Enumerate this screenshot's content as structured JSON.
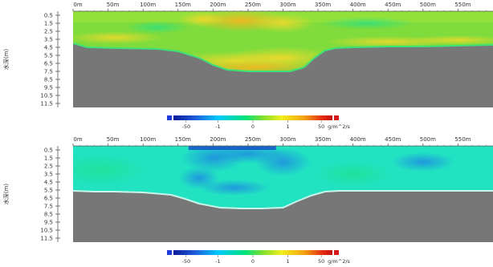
{
  "chart_data": [
    {
      "type": "heatmap",
      "panel": "upper",
      "x_tick_labels": [
        "0m",
        "50m",
        "100m",
        "150m",
        "200m",
        "250m",
        "300m",
        "350m",
        "400m",
        "450m",
        "500m",
        "550m"
      ],
      "x_ticks": [
        0,
        50,
        100,
        150,
        200,
        250,
        300,
        350,
        400,
        450,
        500,
        550
      ],
      "xlim": [
        0,
        600
      ],
      "y_axis_label": "水深(m)",
      "y_tick_labels": [
        "0.5",
        "1.5",
        "2.5",
        "3.5",
        "4.5",
        "5.5",
        "6.5",
        "7.5",
        "8.5",
        "9.5",
        "10.5",
        "11.5"
      ],
      "y_ticks": [
        0.5,
        1.5,
        2.5,
        3.5,
        4.5,
        5.5,
        6.5,
        7.5,
        8.5,
        9.5,
        10.5,
        11.5
      ],
      "ylim": [
        0,
        12
      ],
      "colorbar": {
        "tick_labels": [
          "-50",
          "-1",
          "0",
          "1",
          "50"
        ],
        "unit": "g/m^2/s",
        "ticks": [
          -50,
          -1,
          0,
          1,
          50
        ]
      },
      "bottom_profile": {
        "x": [
          0,
          20,
          60,
          120,
          150,
          180,
          200,
          220,
          250,
          290,
          310,
          330,
          345,
          360,
          375,
          400,
          450,
          500,
          550,
          600
        ],
        "depth": [
          4.0,
          4.5,
          4.6,
          4.7,
          5.0,
          5.8,
          6.7,
          7.3,
          7.5,
          7.5,
          7.5,
          7.0,
          5.8,
          4.9,
          4.6,
          4.5,
          4.4,
          4.4,
          4.3,
          4.2
        ]
      },
      "field_description": "mostly near 0 (green) with small positive values (yellow) near the bottom and in the 150–350m region"
    },
    {
      "type": "heatmap",
      "panel": "lower",
      "x_tick_labels": [
        "0m",
        "50m",
        "100m",
        "150m",
        "200m",
        "250m",
        "300m",
        "350m",
        "400m",
        "450m",
        "500m",
        "550m"
      ],
      "x_ticks": [
        0,
        50,
        100,
        150,
        200,
        250,
        300,
        350,
        400,
        450,
        500,
        550
      ],
      "xlim": [
        0,
        600
      ],
      "y_axis_label": "水深(m)",
      "y_tick_labels": [
        "0.5",
        "1.5",
        "2.5",
        "3.5",
        "4.5",
        "5.5",
        "6.5",
        "7.5",
        "8.5",
        "9.5",
        "10.5",
        "11.5"
      ],
      "y_ticks": [
        0.5,
        1.5,
        2.5,
        3.5,
        4.5,
        5.5,
        6.5,
        7.5,
        8.5,
        9.5,
        10.5,
        11.5
      ],
      "ylim": [
        0,
        12
      ],
      "colorbar": {
        "tick_labels": [
          "-50",
          "-1",
          "0",
          "1",
          "50"
        ],
        "unit": "g/m^2/s",
        "ticks": [
          -50,
          -1,
          0,
          1,
          50
        ]
      },
      "bottom_profile": {
        "x": [
          0,
          30,
          60,
          100,
          140,
          160,
          180,
          210,
          240,
          270,
          300,
          320,
          340,
          360,
          380,
          420,
          480,
          540,
          600
        ],
        "depth": [
          5.6,
          5.7,
          5.7,
          5.8,
          6.1,
          6.6,
          7.2,
          7.7,
          7.8,
          7.8,
          7.7,
          6.9,
          6.2,
          5.7,
          5.6,
          5.6,
          5.6,
          5.6,
          5.6
        ]
      },
      "field_description": "mostly slightly negative (cyan) with stronger negative values (blue) near the surface between 150m and 300m"
    }
  ]
}
